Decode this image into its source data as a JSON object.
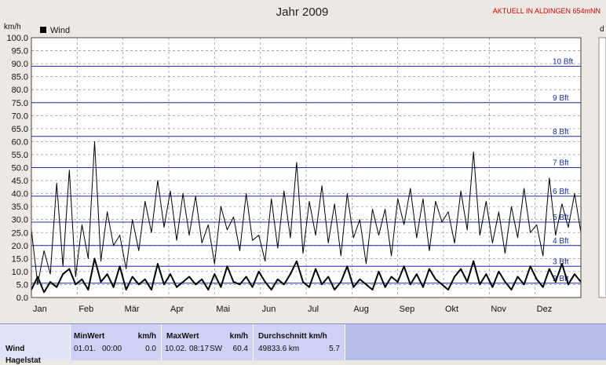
{
  "chart_data": {
    "type": "line",
    "title": "Jahr 2009",
    "ylabel": "km/h",
    "right_axis_label": "d",
    "ylim": [
      0,
      100
    ],
    "yticks": [
      "0.0",
      "5.0",
      "10.0",
      "15.0",
      "20.0",
      "25.0",
      "30.0",
      "35.0",
      "40.0",
      "45.0",
      "50.0",
      "55.0",
      "60.0",
      "65.0",
      "70.0",
      "75.0",
      "80.0",
      "85.0",
      "90.0",
      "95.0",
      "100.0"
    ],
    "xticks": [
      "Jan",
      "Feb",
      "Mär",
      "Apr",
      "Mai",
      "Jun",
      "Jul",
      "Aug",
      "Sep",
      "Okt",
      "Nov",
      "Dez"
    ],
    "legend": [
      {
        "label": "Wind",
        "color": "#000000"
      }
    ],
    "legend_position": "top-left",
    "grid": true,
    "beaufort_lines": [
      {
        "label": "2 Bft",
        "value": 5.5
      },
      {
        "label": "3 Bft",
        "value": 12
      },
      {
        "label": "4 Bft",
        "value": 20
      },
      {
        "label": "5 Bft",
        "value": 29
      },
      {
        "label": "6 Bft",
        "value": 39
      },
      {
        "label": "7 Bft",
        "value": 50
      },
      {
        "label": "8 Bft",
        "value": 62
      },
      {
        "label": "9 Bft",
        "value": 75
      },
      {
        "label": "10 Bft",
        "value": 89
      }
    ],
    "series": [
      {
        "name": "Wind",
        "role": "gust",
        "color": "#000000",
        "values": [
          26,
          5,
          18,
          9,
          44,
          12,
          49,
          8,
          28,
          15,
          60,
          14,
          33,
          20,
          24,
          11,
          30,
          18,
          37,
          25,
          45,
          27,
          41,
          22,
          40,
          24,
          39,
          21,
          28,
          13,
          35,
          26,
          31,
          18,
          40,
          22,
          24,
          14,
          38,
          19,
          41,
          23,
          52,
          17,
          37,
          24,
          43,
          21,
          36,
          16,
          40,
          23,
          30,
          13,
          34,
          24,
          34,
          16,
          38,
          28,
          42,
          23,
          38,
          18,
          37,
          29,
          33,
          21,
          41,
          26,
          56,
          24,
          37,
          21,
          33,
          17,
          35,
          23,
          42,
          25,
          28,
          16,
          46,
          24,
          36,
          27,
          40,
          25
        ]
      },
      {
        "name": "",
        "role": "mean",
        "color": "#000000",
        "values": [
          3,
          8,
          2,
          6,
          4,
          9,
          11,
          5,
          7,
          3,
          15,
          6,
          9,
          4,
          12,
          3,
          8,
          5,
          7,
          3,
          13,
          5,
          9,
          4,
          6,
          8,
          5,
          7,
          3,
          9,
          4,
          12,
          6,
          5,
          8,
          4,
          10,
          6,
          3,
          7,
          5,
          9,
          14,
          6,
          4,
          11,
          5,
          8,
          3,
          6,
          12,
          4,
          7,
          5,
          3,
          10,
          4,
          8,
          6,
          12,
          5,
          9,
          4,
          11,
          7,
          5,
          3,
          8,
          11,
          6,
          14,
          5,
          9,
          4,
          10,
          6,
          3,
          8,
          5,
          12,
          7,
          4,
          11,
          6,
          13,
          5,
          9,
          6
        ]
      }
    ],
    "stats": {
      "row_label": "Wind",
      "row_label_2": "Hagelstat",
      "min_header": "MinWert",
      "min_unit": "km/h",
      "min_date": "01.01.",
      "min_time": "00:00",
      "min_value": "0.0",
      "max_header": "MaxWert",
      "max_unit": "km/h",
      "max_date": "10.02.",
      "max_time": "08:17",
      "max_dir": "SW",
      "max_value": "60.4",
      "avg_header": "Durchschnitt km/h",
      "avg_total": "49833.6 km",
      "avg_value": "5.7"
    }
  },
  "corner_label": "AKTUELL IN ALDINGEN 654mNN"
}
